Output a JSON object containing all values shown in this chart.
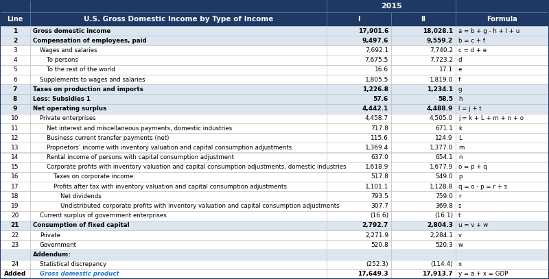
{
  "title_main": "U.S. Gross Domestic Income by Type of Income",
  "col_year": "2015",
  "header_bg": "#1f3864",
  "header_fg": "#ffffff",
  "bold_row_bg": "#dce6f1",
  "normal_row_bg": "#ffffff",
  "gdp_text_color": "#1f78c8",
  "rows": [
    {
      "line": "1",
      "label": "Gross domestic income",
      "indent": 0,
      "bold": true,
      "col1": "17,901.6",
      "col2": "18,028.1",
      "formula": "a = b + g - h + l + u",
      "italic": false
    },
    {
      "line": "2",
      "label": "Compensation of employees, paid",
      "indent": 0,
      "bold": true,
      "col1": "9,497.6",
      "col2": "9,559.2",
      "formula": "b = c + f",
      "italic": false
    },
    {
      "line": "3",
      "label": "Wages and salaries",
      "indent": 1,
      "bold": false,
      "col1": "7,692.1",
      "col2": "7,740.2",
      "formula": "c = d + e",
      "italic": false
    },
    {
      "line": "4",
      "label": "To persons",
      "indent": 2,
      "bold": false,
      "col1": "7,675.5",
      "col2": "7,723.2",
      "formula": "d",
      "italic": false
    },
    {
      "line": "5",
      "label": "To the rest of the world",
      "indent": 2,
      "bold": false,
      "col1": "16.6",
      "col2": "17.1",
      "formula": "e",
      "italic": false
    },
    {
      "line": "6",
      "label": "Supplements to wages and salaries",
      "indent": 1,
      "bold": false,
      "col1": "1,805.5",
      "col2": "1,819.0",
      "formula": "f",
      "italic": false
    },
    {
      "line": "7",
      "label": "Taxes on production and imports",
      "indent": 0,
      "bold": true,
      "col1": "1,226.8",
      "col2": "1,234.1",
      "formula": "g",
      "italic": false
    },
    {
      "line": "8",
      "label": "Less: Subsidies 1",
      "indent": 0,
      "bold": true,
      "col1": "57.6",
      "col2": "58.5",
      "formula": "h",
      "italic": false
    },
    {
      "line": "9",
      "label": "Net operating surplus",
      "indent": 0,
      "bold": true,
      "col1": "4,442.1",
      "col2": "4,488.9",
      "formula": "l = j + t",
      "italic": false
    },
    {
      "line": "10",
      "label": "Private enterprises",
      "indent": 1,
      "bold": false,
      "col1": "4,458.7",
      "col2": "4,505.0",
      "formula": "j = k + L + m + n + o",
      "italic": false
    },
    {
      "line": "11",
      "label": "Net interest and miscellaneous payments, domestic industries",
      "indent": 2,
      "bold": false,
      "col1": "717.8",
      "col2": "671.1",
      "formula": "k",
      "italic": false
    },
    {
      "line": "12",
      "label": "Business current transfer payments (net)",
      "indent": 2,
      "bold": false,
      "col1": "115.6",
      "col2": "124.9",
      "formula": "L",
      "italic": false
    },
    {
      "line": "13",
      "label": "Proprietors’ income with inventory valuation and capital consumption adjustments",
      "indent": 2,
      "bold": false,
      "col1": "1,369.4",
      "col2": "1,377.0",
      "formula": "m",
      "italic": false
    },
    {
      "line": "14",
      "label": "Rental income of persons with capital consumption adjustment",
      "indent": 2,
      "bold": false,
      "col1": "637.0",
      "col2": "654.1",
      "formula": "n",
      "italic": false
    },
    {
      "line": "15",
      "label": "Corporate profits with inventory valuation and capital consumption adjustments, domestic industries",
      "indent": 2,
      "bold": false,
      "col1": "1,618.9",
      "col2": "1,677.9",
      "formula": "o = p + q",
      "italic": false
    },
    {
      "line": "16",
      "label": "Taxes on corporate income",
      "indent": 3,
      "bold": false,
      "col1": "517.8",
      "col2": "549.0",
      "formula": "p",
      "italic": false
    },
    {
      "line": "17",
      "label": "Profits after tax with inventory valuation and capital consumption adjustments",
      "indent": 3,
      "bold": false,
      "col1": "1,101.1",
      "col2": "1,128.8",
      "formula": "q = o - p = r + s",
      "italic": false
    },
    {
      "line": "18",
      "label": "Net dividends",
      "indent": 4,
      "bold": false,
      "col1": "793.5",
      "col2": "759.0",
      "formula": "r",
      "italic": false
    },
    {
      "line": "19",
      "label": "Undistributed corporate profits with inventory valuation and capital consumption adjustments",
      "indent": 4,
      "bold": false,
      "col1": "307.7",
      "col2": "369.8",
      "formula": "s",
      "italic": false
    },
    {
      "line": "20",
      "label": "Current surplus of government enterprises",
      "indent": 1,
      "bold": false,
      "col1": "(16.6)",
      "col2": "(16.1)",
      "formula": "t",
      "italic": false
    },
    {
      "line": "21",
      "label": "Consumption of fixed capital",
      "indent": 0,
      "bold": true,
      "col1": "2,792.7",
      "col2": "2,804.3",
      "formula": "u = v + w",
      "italic": false
    },
    {
      "line": "22",
      "label": "Private",
      "indent": 1,
      "bold": false,
      "col1": "2,271.9",
      "col2": "2,284.1",
      "formula": "v",
      "italic": false
    },
    {
      "line": "23",
      "label": "Government",
      "indent": 1,
      "bold": false,
      "col1": "520.8",
      "col2": "520.3",
      "formula": "w",
      "italic": false
    },
    {
      "line": "",
      "label": "Addendum:",
      "indent": 0,
      "bold": true,
      "col1": "",
      "col2": "",
      "formula": "",
      "italic": false,
      "addendum": true
    },
    {
      "line": "24",
      "label": "Statistical discrepancy",
      "indent": 1,
      "bold": false,
      "col1": "(252.3)",
      "col2": "(114.4)",
      "formula": "x",
      "italic": false
    },
    {
      "line": "Added",
      "label": "Gross domestic product",
      "indent": 1,
      "bold": true,
      "col1": "17,649.3",
      "col2": "17,913.7",
      "formula": "y = a + x = GDP",
      "italic": true,
      "gdp": true
    }
  ],
  "figsize": [
    8.0,
    4.07
  ],
  "dpi": 100
}
